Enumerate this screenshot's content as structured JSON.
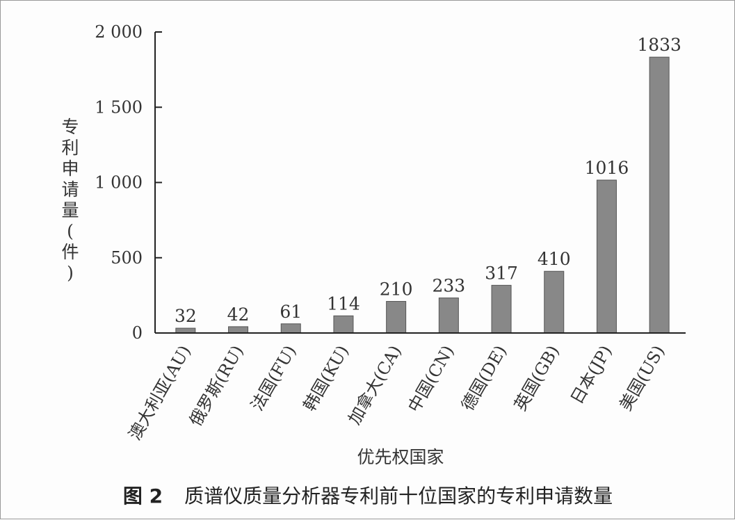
{
  "chart_data": {
    "type": "bar",
    "categories": [
      "澳大利亚(AU)",
      "俄罗斯(RU)",
      "法国(FU)",
      "韩国(KU)",
      "加拿大(CA)",
      "中国(CN)",
      "德国(DE)",
      "英国(GB)",
      "日本(JP)",
      "美国(US)"
    ],
    "values": [
      32,
      42,
      61,
      114,
      210,
      233,
      317,
      410,
      1016,
      1833
    ],
    "data_labels": [
      "32",
      "42",
      "61",
      "114",
      "210",
      "233",
      "317",
      "410",
      "1016",
      "1833"
    ],
    "ylabel": "专利申请量(件)",
    "xlabel": "优先权国家",
    "ylim": [
      0,
      2000
    ],
    "yticks": [
      0,
      500,
      1000,
      1500,
      2000
    ],
    "ytick_labels": [
      "0",
      "500",
      "1 000",
      "1 500",
      "2 000"
    ],
    "grid": false,
    "bar_color": "#888888"
  },
  "caption": {
    "label": "图 2",
    "text": "质谱仪质量分析器专利前十位国家的专利申请数量"
  }
}
